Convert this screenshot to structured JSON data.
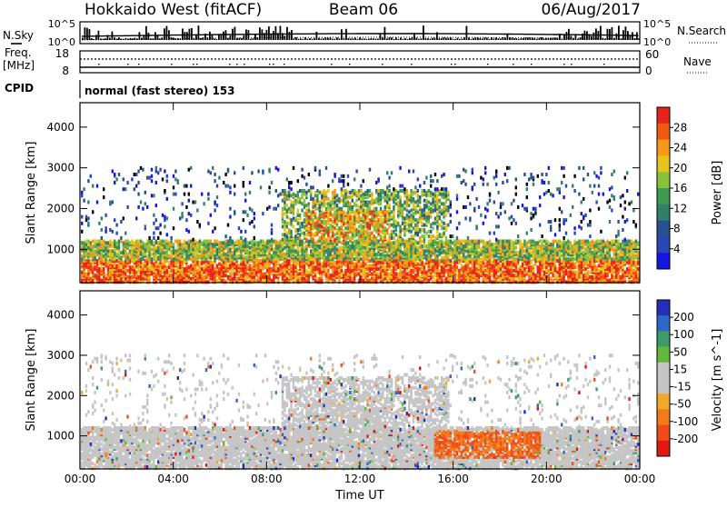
{
  "header": {
    "station": "Hokkaido West (fitACF)",
    "beam": "Beam 06",
    "date": "06/Aug/2017"
  },
  "top_panels": {
    "nsky_label": "N.Sky",
    "nsearch_label": "N.Search",
    "freq_label_line1": "Freq.",
    "freq_label_line2": "[MHz]",
    "nave_label": "Nave",
    "cpid_label": "CPID",
    "cpid_value": "normal (fast stereo) 153",
    "noise_left_ticks": [
      "10^5",
      "10^0"
    ],
    "noise_right_ticks": [
      "10^5",
      "10^0"
    ],
    "freq_ticks": [
      "18",
      "8"
    ],
    "nave_ticks": [
      "60",
      "0"
    ]
  },
  "chart_data": [
    {
      "type": "heatmap",
      "title": "",
      "xlabel": "",
      "ylabel": "Slant Range [km]",
      "ylim": [
        180,
        4600
      ],
      "yticks": [
        "4000",
        "3000",
        "2000",
        "1000"
      ],
      "xticks": [
        "00:00",
        "04:00",
        "08:00",
        "12:00",
        "16:00",
        "20:00",
        "00:00"
      ],
      "colorbar": {
        "label": "Power [dB]",
        "ticks": [
          "28",
          "24",
          "20",
          "16",
          "12",
          "8",
          "4"
        ],
        "colors": [
          "#e8231b",
          "#f05a10",
          "#f7981a",
          "#e6c41c",
          "#86c33a",
          "#3f9a52",
          "#2f7f6b",
          "#29508f",
          "#2748b5",
          "#1515e8"
        ]
      }
    },
    {
      "type": "heatmap",
      "title": "",
      "xlabel": "Time UT",
      "ylabel": "Slant Range [km]",
      "ylim": [
        180,
        4600
      ],
      "yticks": [
        "4000",
        "3000",
        "2000",
        "1000"
      ],
      "xticks": [
        "00:00",
        "04:00",
        "08:00",
        "12:00",
        "16:00",
        "20:00",
        "00:00"
      ],
      "colorbar": {
        "label": "Velocity [m s^-1]",
        "ticks": [
          "200",
          "100",
          "50",
          "15",
          "-15",
          "-50",
          "-100",
          "-200"
        ],
        "colors": [
          "#2230b8",
          "#2f67c9",
          "#3c9a6b",
          "#62b83a",
          "#c5c5c5",
          "#c5c5c5",
          "#f2a82c",
          "#f27a1a",
          "#ef4c17",
          "#e01a12"
        ]
      }
    }
  ]
}
